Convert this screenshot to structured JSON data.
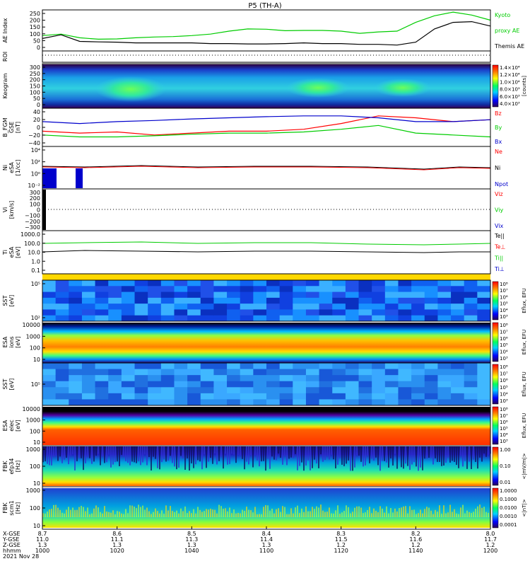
{
  "title": "P5 (TH-A)",
  "time_axis": {
    "tick_labels": [
      "1000",
      "1020",
      "1040",
      "1100",
      "1120",
      "1140",
      "1200"
    ],
    "row_labels": [
      "X-GSE",
      "Y-GSE",
      "Z-GSE",
      "hhmm",
      "2021 Nov 28"
    ],
    "x_gse": [
      "8.7",
      "8.6",
      "8.5",
      "8.4",
      "8.3",
      "8.2",
      "8.0"
    ],
    "y_gse": [
      "11.0",
      "11.1",
      "11.3",
      "11.4",
      "11.5",
      "11.6",
      "11.7"
    ],
    "z_gse": [
      "1.3",
      "1.3",
      "1.3",
      "1.3",
      "1.2",
      "1.2",
      "1.2"
    ]
  },
  "panels": [
    {
      "id": "ae",
      "ylabel": "AE Index",
      "yticks": [
        "250",
        "200",
        "150",
        "100",
        "50",
        "0"
      ],
      "legend": [
        {
          "text": "Kyoto",
          "color": "#00cc00"
        },
        {
          "text": "proxy AE",
          "color": "#00cc00"
        },
        {
          "text": "Themis AE",
          "color": "#000000"
        }
      ]
    },
    {
      "id": "roi",
      "ylabel": "ROI",
      "yticks": []
    },
    {
      "id": "keogram",
      "ylabel": "Keogram",
      "yticks": [
        "300",
        "250",
        "200",
        "150",
        "100",
        "50",
        "0"
      ],
      "colorbar": {
        "ticks": [
          "1.4×10⁴",
          "1.2×10⁴",
          "1.0×10⁴",
          "8.0×10³",
          "6.0×10³",
          "4.0×10³"
        ],
        "label": "[counts]"
      }
    },
    {
      "id": "bfgm",
      "ylabel": "B_FGM",
      "ylabel2": "GSE",
      "ylabel3": "[nT]",
      "yticks": [
        "40",
        "20",
        "0",
        "−20",
        "−40"
      ],
      "legend": [
        {
          "text": "Bz",
          "color": "#ff0000"
        },
        {
          "text": "By",
          "color": "#00cc00"
        },
        {
          "text": "Bx",
          "color": "#0000cc"
        }
      ]
    },
    {
      "id": "density",
      "ylabel": "Ni",
      "ylabel2": "eSA",
      "ylabel3": "[1/cc]",
      "yticks": [
        "10⁴",
        "10²",
        "10⁰",
        "10⁻²"
      ],
      "legend": [
        {
          "text": "Ne",
          "color": "#ff0000"
        },
        {
          "text": "Ni",
          "color": "#000000"
        },
        {
          "text": "Npot",
          "color": "#0000cc"
        }
      ]
    },
    {
      "id": "velocity",
      "ylabel": "Vi",
      "ylabel2": "[km/s]",
      "yticks": [
        "300",
        "200",
        "100",
        "0",
        "−100",
        "−200",
        "−300"
      ],
      "legend": [
        {
          "text": "Viz",
          "color": "#ff0000"
        },
        {
          "text": "Viy",
          "color": "#00cc00"
        },
        {
          "text": "Vix",
          "color": "#0000cc"
        }
      ]
    },
    {
      "id": "temperature",
      "ylabel": "Ti",
      "ylabel2": "eSA",
      "ylabel3": "[eV]",
      "yticks": [
        "1000.0",
        "100.0",
        "10.0",
        "1.0",
        "0.1"
      ],
      "legend": [
        {
          "text": "Te||",
          "color": "#000000"
        },
        {
          "text": "Te⊥",
          "color": "#ff0000"
        },
        {
          "text": "Ti||",
          "color": "#00cc00"
        },
        {
          "text": "Ti⊥",
          "color": "#0000cc"
        }
      ]
    },
    {
      "id": "sst_i",
      "ylabel": "SST",
      "ylabel2": "[eV]",
      "yticks": [
        "10⁵",
        "10²"
      ],
      "colorbar": {
        "ticks": [
          "10⁸",
          "10⁷",
          "10⁶",
          "10⁵",
          "10⁴",
          "10³"
        ],
        "label": "Eflux, EFU"
      }
    },
    {
      "id": "esa_i",
      "ylabel": "ESA",
      "ylabel2": "ions",
      "ylabel3": "[eV]",
      "yticks": [
        "10000",
        "1000",
        "100",
        "10"
      ],
      "colorbar": {
        "ticks": [
          "10⁸",
          "10⁷",
          "10⁶",
          "10⁵",
          "10⁴",
          "10³"
        ],
        "label": "Eflux, EFU"
      }
    },
    {
      "id": "sst_e",
      "ylabel": "SST",
      "ylabel2": "[eV]",
      "yticks": [
        "10⁵"
      ],
      "colorbar": {
        "ticks": [
          "10⁸",
          "10⁷",
          "10⁶",
          "10⁵",
          "10⁴",
          "10³"
        ],
        "label": "Eflux, EFU"
      }
    },
    {
      "id": "esa_e",
      "ylabel": "ESA",
      "ylabel2": "elec",
      "ylabel3": "[eV]",
      "yticks": [
        "10000",
        "1000",
        "100",
        "10"
      ],
      "colorbar": {
        "ticks": [
          "10⁸",
          "10⁷",
          "10⁶",
          "10⁵",
          "10⁴",
          "10³"
        ],
        "label": "Eflux, EFU"
      }
    },
    {
      "id": "fbk_e",
      "ylabel": "FBK",
      "ylabel2": "efp34",
      "ylabel3": "[Hz]",
      "yticks": [
        "1000",
        "100",
        "10"
      ],
      "colorbar": {
        "ticks": [
          "1.00",
          "0.10",
          "0.01"
        ],
        "label": "<|mV/m|>"
      }
    },
    {
      "id": "fbk_b",
      "ylabel": "FBK",
      "ylabel2": "scm1",
      "ylabel3": "[Hz]",
      "yticks": [
        "1000",
        "100",
        "10"
      ],
      "colorbar": {
        "ticks": [
          "1.0000",
          "0.1000",
          "0.0100",
          "0.0010",
          "0.0001"
        ],
        "label": "<|nT|>"
      }
    }
  ],
  "chart_data": [
    {
      "type": "line",
      "panel": "ae",
      "ylabel": "AE Index",
      "ylim": [
        -20,
        260
      ],
      "x_hhmm": [
        "1000",
        "1005",
        "1010",
        "1015",
        "1020",
        "1025",
        "1030",
        "1035",
        "1040",
        "1045",
        "1050",
        "1055",
        "1100",
        "1105",
        "1110",
        "1115",
        "1120",
        "1125",
        "1130",
        "1135",
        "1140",
        "1145",
        "1150",
        "1155",
        "1200"
      ],
      "series": [
        {
          "name": "Kyoto proxy AE",
          "color": "#00cc00",
          "values": [
            85,
            95,
            70,
            60,
            62,
            70,
            75,
            78,
            85,
            95,
            115,
            130,
            128,
            118,
            120,
            120,
            115,
            100,
            110,
            115,
            175,
            220,
            245,
            225,
            190
          ]
        },
        {
          "name": "Themis AE",
          "color": "#000000",
          "values": [
            65,
            90,
            45,
            42,
            40,
            35,
            35,
            35,
            35,
            30,
            30,
            28,
            28,
            30,
            35,
            30,
            30,
            25,
            25,
            20,
            40,
            130,
            175,
            180,
            150
          ]
        }
      ]
    },
    {
      "type": "line",
      "panel": "bfgm",
      "ylabel": "B_FGM GSE [nT]",
      "ylim": [
        -50,
        50
      ],
      "x_hhmm": [
        "1000",
        "1010",
        "1020",
        "1030",
        "1040",
        "1050",
        "1100",
        "1110",
        "1120",
        "1130",
        "1140",
        "1150",
        "1200"
      ],
      "series": [
        {
          "name": "Bz",
          "color": "#ff0000",
          "values": [
            -10,
            -15,
            -12,
            -20,
            -15,
            -10,
            -10,
            -5,
            10,
            30,
            25,
            15,
            20
          ]
        },
        {
          "name": "By",
          "color": "#00cc00",
          "values": [
            -20,
            -25,
            -25,
            -22,
            -18,
            -15,
            -15,
            -12,
            -5,
            5,
            -15,
            -20,
            -25
          ]
        },
        {
          "name": "Bx",
          "color": "#0000cc",
          "values": [
            15,
            10,
            15,
            18,
            22,
            25,
            28,
            30,
            30,
            25,
            15,
            15,
            20
          ]
        }
      ]
    },
    {
      "type": "heatmap",
      "panel": "keogram",
      "ylabel": "Keogram",
      "ylim": [
        0,
        300
      ]
    },
    {
      "type": "heatmap",
      "panel": "esa_i",
      "ylabel": "ESA ions [eV]",
      "ylim": [
        10,
        25000
      ]
    },
    {
      "type": "heatmap",
      "panel": "esa_e",
      "ylabel": "ESA elec [eV]",
      "ylim": [
        10,
        25000
      ]
    }
  ]
}
